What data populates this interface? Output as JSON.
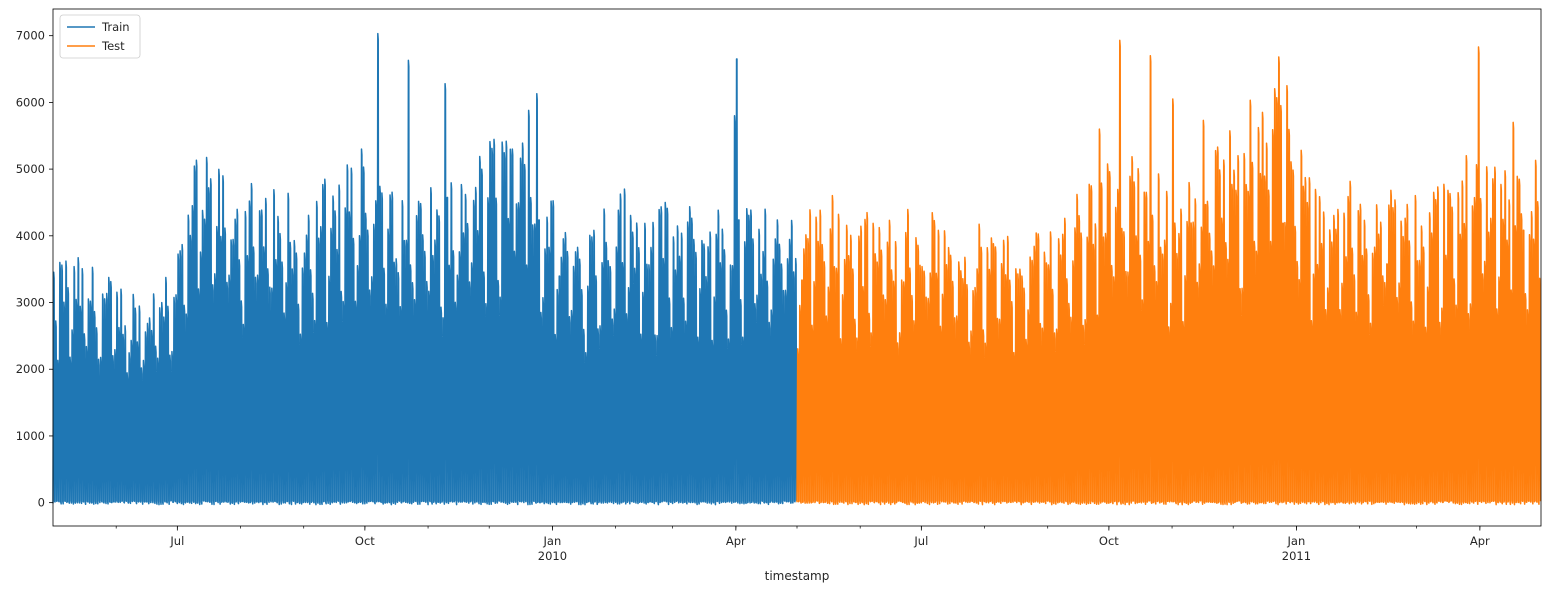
{
  "chart_data": {
    "type": "line",
    "title": "",
    "xlabel": "timestamp",
    "ylabel": "",
    "grid": false,
    "legend": "top-left",
    "x_range": [
      "2009-05-01",
      "2011-05-01"
    ],
    "ylim": [
      -350,
      7400
    ],
    "y_ticks": [
      0,
      1000,
      2000,
      3000,
      4000,
      5000,
      6000,
      7000
    ],
    "x_major_ticks": [
      {
        "date": "2009-07-01",
        "label": "Jul",
        "sublabel": ""
      },
      {
        "date": "2009-10-01",
        "label": "Oct",
        "sublabel": ""
      },
      {
        "date": "2010-01-01",
        "label": "Jan",
        "sublabel": "2010"
      },
      {
        "date": "2010-04-01",
        "label": "Apr",
        "sublabel": ""
      },
      {
        "date": "2010-07-01",
        "label": "Jul",
        "sublabel": ""
      },
      {
        "date": "2010-10-01",
        "label": "Oct",
        "sublabel": ""
      },
      {
        "date": "2011-01-01",
        "label": "Jan",
        "sublabel": "2011"
      },
      {
        "date": "2011-04-01",
        "label": "Apr",
        "sublabel": ""
      }
    ],
    "series": [
      {
        "name": "Train",
        "color": "#1f77b4",
        "x_start": "2009-05-01",
        "x_end": "2010-05-01",
        "daily_peak_envelope": [
          [
            "2009-05-01",
            3300
          ],
          [
            "2009-05-15",
            3200
          ],
          [
            "2009-06-01",
            2900
          ],
          [
            "2009-06-15",
            2800
          ],
          [
            "2009-07-01",
            3400
          ],
          [
            "2009-07-10",
            4600
          ],
          [
            "2009-08-01",
            4200
          ],
          [
            "2009-09-01",
            4000
          ],
          [
            "2009-09-15",
            4400
          ],
          [
            "2009-10-01",
            4500
          ],
          [
            "2009-10-15",
            4200
          ],
          [
            "2009-11-01",
            4100
          ],
          [
            "2009-11-15",
            4200
          ],
          [
            "2009-12-01",
            4800
          ],
          [
            "2009-12-15",
            4900
          ],
          [
            "2010-01-01",
            4000
          ],
          [
            "2010-01-15",
            3600
          ],
          [
            "2010-02-01",
            4200
          ],
          [
            "2010-03-01",
            3900
          ],
          [
            "2010-04-01",
            3900
          ],
          [
            "2010-05-01",
            3900
          ]
        ],
        "spikes": [
          [
            "2009-10-07",
            7030
          ],
          [
            "2009-10-22",
            6630
          ],
          [
            "2009-11-09",
            6280
          ],
          [
            "2009-12-24",
            6130
          ],
          [
            "2009-12-20",
            5880
          ],
          [
            "2010-04-01",
            6650
          ],
          [
            "2010-03-31",
            5800
          ],
          [
            "2009-09-29",
            5300
          ],
          [
            "2009-12-12",
            5300
          ]
        ],
        "dips": [
          [
            "2009-12-25",
            870
          ],
          [
            "2009-11-10",
            1820
          ],
          [
            "2010-04-02",
            1620
          ],
          [
            "2010-04-01",
            2040
          ],
          [
            "2010-01-04",
            1900
          ]
        ]
      },
      {
        "name": "Test",
        "color": "#ff7f0e",
        "x_start": "2010-05-01",
        "x_end": "2011-05-01",
        "daily_peak_envelope": [
          [
            "2010-05-01",
            3700
          ],
          [
            "2010-05-10",
            4200
          ],
          [
            "2010-06-01",
            3800
          ],
          [
            "2010-07-01",
            3900
          ],
          [
            "2010-08-01",
            3600
          ],
          [
            "2010-09-01",
            3700
          ],
          [
            "2010-09-20",
            4200
          ],
          [
            "2010-10-01",
            4600
          ],
          [
            "2010-10-15",
            4500
          ],
          [
            "2010-11-01",
            4200
          ],
          [
            "2010-11-15",
            4400
          ],
          [
            "2010-12-01",
            5000
          ],
          [
            "2010-12-15",
            5700
          ],
          [
            "2010-12-25",
            5900
          ],
          [
            "2011-01-01",
            4600
          ],
          [
            "2011-01-15",
            4000
          ],
          [
            "2011-02-01",
            4300
          ],
          [
            "2011-03-01",
            4100
          ],
          [
            "2011-03-20",
            4400
          ],
          [
            "2011-04-01",
            4700
          ],
          [
            "2011-05-01",
            4500
          ]
        ],
        "spikes": [
          [
            "2010-10-06",
            6930
          ],
          [
            "2010-10-21",
            6700
          ],
          [
            "2010-12-23",
            6680
          ],
          [
            "2010-12-27",
            6250
          ],
          [
            "2011-03-31",
            6830
          ],
          [
            "2010-11-01",
            6050
          ],
          [
            "2010-11-16",
            5730
          ],
          [
            "2010-09-26",
            5600
          ],
          [
            "2011-04-17",
            5700
          ],
          [
            "2011-01-03",
            5280
          ]
        ],
        "dips": [
          [
            "2010-12-25",
            880
          ],
          [
            "2011-04-22",
            1400
          ],
          [
            "2010-11-17",
            1870
          ],
          [
            "2011-02-14",
            2050
          ],
          [
            "2010-05-03",
            300
          ]
        ]
      }
    ]
  }
}
